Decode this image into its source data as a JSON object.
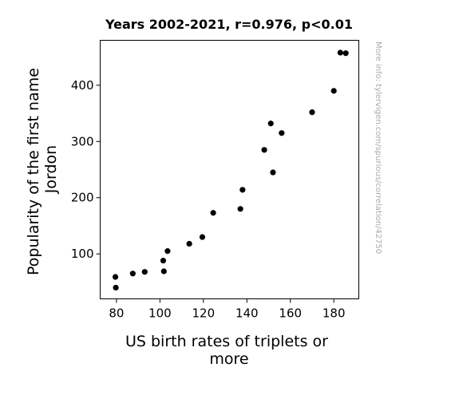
{
  "chart_data": {
    "type": "scatter",
    "title": "Years 2002-2021, r=0.976, p<0.01",
    "xlabel_lines": [
      "US birth rates of triplets or",
      "more"
    ],
    "ylabel_lines": [
      "Popularity of the first name",
      "Jordon"
    ],
    "xlim": [
      72.5,
      191.5
    ],
    "ylim": [
      20,
      480
    ],
    "xticks": [
      80,
      100,
      120,
      140,
      160,
      180
    ],
    "yticks": [
      100,
      200,
      300,
      400
    ],
    "grid": false,
    "point_color": "#000000",
    "points": [
      {
        "x": 79.5,
        "y": 59
      },
      {
        "x": 79.7,
        "y": 40
      },
      {
        "x": 87.5,
        "y": 65
      },
      {
        "x": 93.0,
        "y": 68
      },
      {
        "x": 101.5,
        "y": 88
      },
      {
        "x": 101.8,
        "y": 69
      },
      {
        "x": 103.5,
        "y": 105
      },
      {
        "x": 113.5,
        "y": 118
      },
      {
        "x": 119.5,
        "y": 130
      },
      {
        "x": 124.5,
        "y": 173
      },
      {
        "x": 137.0,
        "y": 180
      },
      {
        "x": 138.0,
        "y": 214
      },
      {
        "x": 148.0,
        "y": 285
      },
      {
        "x": 151.0,
        "y": 332
      },
      {
        "x": 152.0,
        "y": 245
      },
      {
        "x": 156.0,
        "y": 315
      },
      {
        "x": 170.0,
        "y": 352
      },
      {
        "x": 180.0,
        "y": 390
      },
      {
        "x": 183.0,
        "y": 458
      },
      {
        "x": 185.5,
        "y": 457
      }
    ]
  },
  "watermark": "More info: tylervigen.com/spurious/correlation/42750"
}
